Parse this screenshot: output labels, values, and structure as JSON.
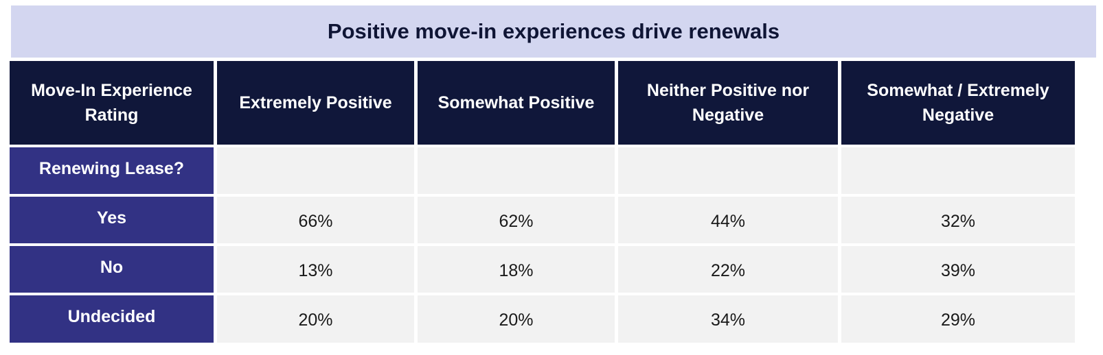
{
  "title": "Positive move-in experiences drive renewals",
  "header": {
    "row_header": "Move-In Experience Rating",
    "columns": [
      "Extremely Positive",
      "Somewhat Positive",
      "Neither Positive nor Negative",
      "Somewhat / Extremely Negative"
    ]
  },
  "section_label": "Renewing Lease?",
  "rows": [
    {
      "label": "Yes",
      "values": [
        "66%",
        "62%",
        "44%",
        "32%"
      ]
    },
    {
      "label": "No",
      "values": [
        "13%",
        "18%",
        "22%",
        "39%"
      ]
    },
    {
      "label": "Undecided",
      "values": [
        "20%",
        "20%",
        "34%",
        "29%"
      ]
    }
  ],
  "colors": {
    "title_band": "#d3d6f0",
    "header_bg": "#10173a",
    "row_label_bg": "#323284",
    "cell_bg": "#f2f2f2"
  },
  "chart_data": {
    "type": "table",
    "title": "Positive move-in experiences drive renewals",
    "row_header": "Move-In Experience Rating",
    "columns": [
      "Extremely Positive",
      "Somewhat Positive",
      "Neither Positive nor Negative",
      "Somewhat / Extremely Negative"
    ],
    "row_group": "Renewing Lease?",
    "rows": [
      "Yes",
      "No",
      "Undecided"
    ],
    "values": [
      [
        66,
        62,
        44,
        32
      ],
      [
        13,
        18,
        22,
        39
      ],
      [
        20,
        20,
        34,
        29
      ]
    ],
    "unit": "%"
  }
}
